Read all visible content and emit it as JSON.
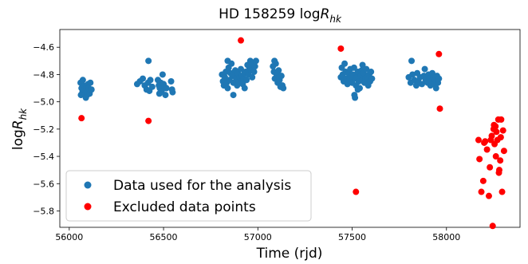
{
  "chart_data": {
    "type": "scatter",
    "title": "HD 158259 log",
    "title_sub": "hk",
    "xlabel": "Time (rjd)",
    "ylabel": "log",
    "ylabel_sub": "hk",
    "title_prefix": "R",
    "ylabel_var": "R",
    "xlim": [
      55950,
      58390
    ],
    "ylim": [
      -5.92,
      -4.47
    ],
    "xticks": [
      56000,
      56500,
      57000,
      57500,
      58000
    ],
    "yticks": [
      -4.6,
      -4.8,
      -5.0,
      -5.2,
      -5.4,
      -5.6,
      -5.8
    ],
    "ytick_labels": [
      "−4.6",
      "−4.8",
      "−5.0",
      "−5.2",
      "−5.4",
      "−5.6",
      "−5.8"
    ],
    "legend_position": "lower-left",
    "series": [
      {
        "name": "Data used for the analysis",
        "color": "#1f77b4",
        "points": [
          [
            56060,
            -4.86
          ],
          [
            56065,
            -4.9
          ],
          [
            56070,
            -4.93
          ],
          [
            56075,
            -4.88
          ],
          [
            56080,
            -4.91
          ],
          [
            56085,
            -4.94
          ],
          [
            56090,
            -4.89
          ],
          [
            56095,
            -4.95
          ],
          [
            56098,
            -4.92
          ],
          [
            56100,
            -4.87
          ],
          [
            56103,
            -4.9
          ],
          [
            56108,
            -4.94
          ],
          [
            56112,
            -4.86
          ],
          [
            56118,
            -4.91
          ],
          [
            56062,
            -4.95
          ],
          [
            56072,
            -4.84
          ],
          [
            56088,
            -4.97
          ],
          [
            56360,
            -4.87
          ],
          [
            56375,
            -4.85
          ],
          [
            56390,
            -4.83
          ],
          [
            56400,
            -4.88
          ],
          [
            56410,
            -4.91
          ],
          [
            56418,
            -4.86
          ],
          [
            56425,
            -4.92
          ],
          [
            56430,
            -4.84
          ],
          [
            56440,
            -4.89
          ],
          [
            56420,
            -4.7
          ],
          [
            56470,
            -4.84
          ],
          [
            56475,
            -4.88
          ],
          [
            56480,
            -4.9
          ],
          [
            56485,
            -4.86
          ],
          [
            56490,
            -4.92
          ],
          [
            56495,
            -4.8
          ],
          [
            56500,
            -4.87
          ],
          [
            56505,
            -4.89
          ],
          [
            56510,
            -4.95
          ],
          [
            56515,
            -4.9
          ],
          [
            56540,
            -4.85
          ],
          [
            56545,
            -4.91
          ],
          [
            56548,
            -4.93
          ],
          [
            56478,
            -4.94
          ],
          [
            56810,
            -4.8
          ],
          [
            56815,
            -4.85
          ],
          [
            56820,
            -4.88
          ],
          [
            56825,
            -4.82
          ],
          [
            56830,
            -4.78
          ],
          [
            56835,
            -4.86
          ],
          [
            56840,
            -4.9
          ],
          [
            56845,
            -4.75
          ],
          [
            56850,
            -4.84
          ],
          [
            56855,
            -4.79
          ],
          [
            56860,
            -4.72
          ],
          [
            56865,
            -4.81
          ],
          [
            56870,
            -4.86
          ],
          [
            56875,
            -4.8
          ],
          [
            56880,
            -4.77
          ],
          [
            56885,
            -4.83
          ],
          [
            56890,
            -4.88
          ],
          [
            56895,
            -4.79
          ],
          [
            56900,
            -4.85
          ],
          [
            56905,
            -4.82
          ],
          [
            56910,
            -4.76
          ],
          [
            56915,
            -4.81
          ],
          [
            56920,
            -4.87
          ],
          [
            56925,
            -4.83
          ],
          [
            56930,
            -4.79
          ],
          [
            56935,
            -4.78
          ],
          [
            56940,
            -4.84
          ],
          [
            56945,
            -4.73
          ],
          [
            56950,
            -4.8
          ],
          [
            56955,
            -4.75
          ],
          [
            56960,
            -4.7
          ],
          [
            56965,
            -4.77
          ],
          [
            56970,
            -4.82
          ],
          [
            56975,
            -4.72
          ],
          [
            56980,
            -4.78
          ],
          [
            56985,
            -4.74
          ],
          [
            56990,
            -4.7
          ],
          [
            56840,
            -4.7
          ],
          [
            56870,
            -4.95
          ],
          [
            56930,
            -4.9
          ],
          [
            57080,
            -4.74
          ],
          [
            57085,
            -4.78
          ],
          [
            57090,
            -4.83
          ],
          [
            57095,
            -4.72
          ],
          [
            57100,
            -4.8
          ],
          [
            57105,
            -4.86
          ],
          [
            57110,
            -4.77
          ],
          [
            57115,
            -4.84
          ],
          [
            57120,
            -4.89
          ],
          [
            57125,
            -4.81
          ],
          [
            57130,
            -4.88
          ],
          [
            57135,
            -4.9
          ],
          [
            57088,
            -4.7
          ],
          [
            57440,
            -4.82
          ],
          [
            57445,
            -4.75
          ],
          [
            57450,
            -4.8
          ],
          [
            57455,
            -4.85
          ],
          [
            57460,
            -4.72
          ],
          [
            57465,
            -4.78
          ],
          [
            57470,
            -4.83
          ],
          [
            57475,
            -4.87
          ],
          [
            57480,
            -4.79
          ],
          [
            57485,
            -4.84
          ],
          [
            57490,
            -4.76
          ],
          [
            57495,
            -4.81
          ],
          [
            57500,
            -4.86
          ],
          [
            57505,
            -4.8
          ],
          [
            57510,
            -4.75
          ],
          [
            57515,
            -4.83
          ],
          [
            57520,
            -4.88
          ],
          [
            57525,
            -4.82
          ],
          [
            57530,
            -4.78
          ],
          [
            57535,
            -4.85
          ],
          [
            57540,
            -4.9
          ],
          [
            57545,
            -4.81
          ],
          [
            57550,
            -4.77
          ],
          [
            57555,
            -4.84
          ],
          [
            57560,
            -4.79
          ],
          [
            57565,
            -4.86
          ],
          [
            57570,
            -4.83
          ],
          [
            57575,
            -4.76
          ],
          [
            57580,
            -4.82
          ],
          [
            57585,
            -4.88
          ],
          [
            57590,
            -4.8
          ],
          [
            57595,
            -4.85
          ],
          [
            57600,
            -4.78
          ],
          [
            57605,
            -4.83
          ],
          [
            57512,
            -4.95
          ],
          [
            57515,
            -4.97
          ],
          [
            57530,
            -4.91
          ],
          [
            57555,
            -4.73
          ],
          [
            57800,
            -4.82
          ],
          [
            57810,
            -4.86
          ],
          [
            57815,
            -4.7
          ],
          [
            57820,
            -4.8
          ],
          [
            57830,
            -4.84
          ],
          [
            57840,
            -4.88
          ],
          [
            57845,
            -4.79
          ],
          [
            57850,
            -4.85
          ],
          [
            57860,
            -4.82
          ],
          [
            57870,
            -4.87
          ],
          [
            57880,
            -4.81
          ],
          [
            57885,
            -4.76
          ],
          [
            57890,
            -4.84
          ],
          [
            57900,
            -4.86
          ],
          [
            57905,
            -4.8
          ],
          [
            57910,
            -4.83
          ],
          [
            57915,
            -4.88
          ],
          [
            57920,
            -4.85
          ],
          [
            57925,
            -4.79
          ],
          [
            57930,
            -4.82
          ],
          [
            57935,
            -4.87
          ],
          [
            57940,
            -4.84
          ],
          [
            57945,
            -4.9
          ],
          [
            57950,
            -4.81
          ],
          [
            57955,
            -4.86
          ],
          [
            57960,
            -4.83
          ]
        ]
      },
      {
        "name": "Excluded data points",
        "color": "#ff0000",
        "points": [
          [
            56065,
            -5.12
          ],
          [
            56420,
            -5.14
          ],
          [
            56910,
            -4.55
          ],
          [
            57440,
            -4.61
          ],
          [
            57520,
            -5.66
          ],
          [
            57960,
            -4.65
          ],
          [
            57965,
            -5.05
          ],
          [
            58170,
            -5.28
          ],
          [
            58175,
            -5.42
          ],
          [
            58185,
            -5.66
          ],
          [
            58195,
            -5.58
          ],
          [
            58200,
            -5.3
          ],
          [
            58205,
            -5.29
          ],
          [
            58215,
            -5.35
          ],
          [
            58225,
            -5.69
          ],
          [
            58230,
            -5.48
          ],
          [
            58235,
            -5.28
          ],
          [
            58240,
            -5.25
          ],
          [
            58245,
            -5.91
          ],
          [
            58250,
            -5.2
          ],
          [
            58255,
            -5.31
          ],
          [
            58260,
            -5.18
          ],
          [
            58265,
            -5.22
          ],
          [
            58270,
            -5.28
          ],
          [
            58275,
            -5.13
          ],
          [
            58280,
            -5.5
          ],
          [
            58285,
            -5.43
          ],
          [
            58290,
            -5.13
          ],
          [
            58295,
            -5.66
          ],
          [
            58300,
            -5.21
          ],
          [
            58305,
            -5.36
          ],
          [
            58252,
            -5.17
          ],
          [
            58262,
            -5.4
          ],
          [
            58278,
            -5.52
          ],
          [
            58288,
            -5.26
          ]
        ]
      }
    ]
  }
}
